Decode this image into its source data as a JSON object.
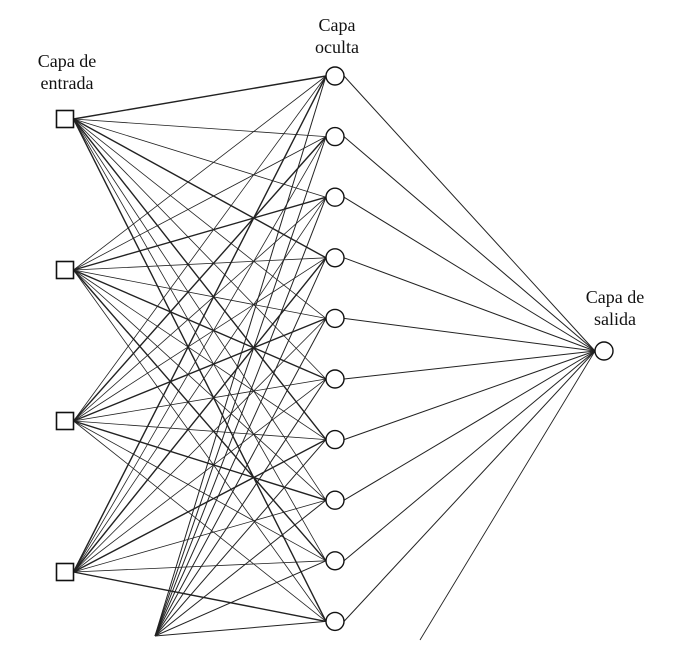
{
  "diagram": {
    "layers": {
      "input": {
        "label_lines": [
          "Capa de",
          "entrada"
        ],
        "count": 4
      },
      "hidden": {
        "label_lines": [
          "Capa",
          "oculta"
        ],
        "count": 10
      },
      "output": {
        "label_lines": [
          "Capa de",
          "salida"
        ],
        "count": 1
      }
    },
    "colors": {
      "edge": "#222222",
      "node_fill": "#ffffff",
      "node_stroke": "#111111",
      "text": "#111111",
      "background": "#ffffff"
    }
  }
}
